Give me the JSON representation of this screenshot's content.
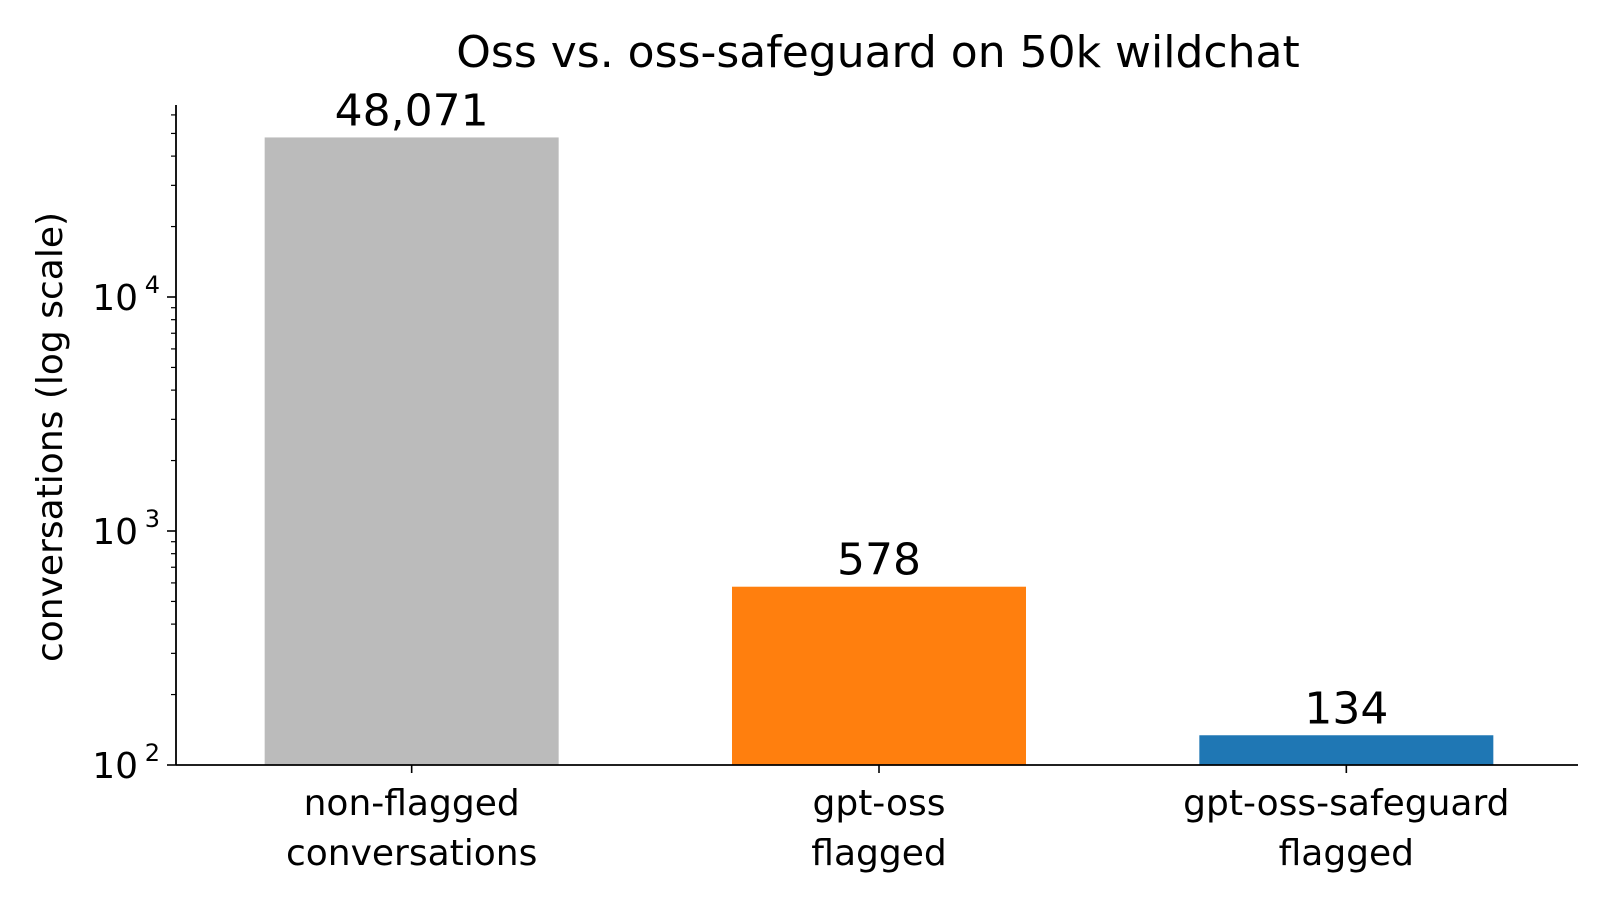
{
  "chart_data": {
    "type": "bar",
    "title": "Oss vs. oss-safeguard on 50k wildchat",
    "ylabel": "conversations (log scale)",
    "xlabel": "",
    "y_scale": "log",
    "ylim": [
      100,
      60000
    ],
    "y_major_ticks": [
      {
        "value": 100,
        "base": "10",
        "exponent": "2"
      },
      {
        "value": 1000,
        "base": "10",
        "exponent": "3"
      },
      {
        "value": 10000,
        "base": "10",
        "exponent": "4"
      }
    ],
    "categories": [
      {
        "lines": [
          "non-flagged",
          "conversations"
        ]
      },
      {
        "lines": [
          "gpt-oss",
          "flagged"
        ]
      },
      {
        "lines": [
          "gpt-oss-safeguard",
          "flagged"
        ]
      }
    ],
    "values": [
      48071,
      578,
      134
    ],
    "value_labels": [
      "48,071",
      "578",
      "134"
    ],
    "colors": [
      "#bbbbbb",
      "#ff7f0e",
      "#1f77b4"
    ],
    "grid": false,
    "legend": "none"
  }
}
